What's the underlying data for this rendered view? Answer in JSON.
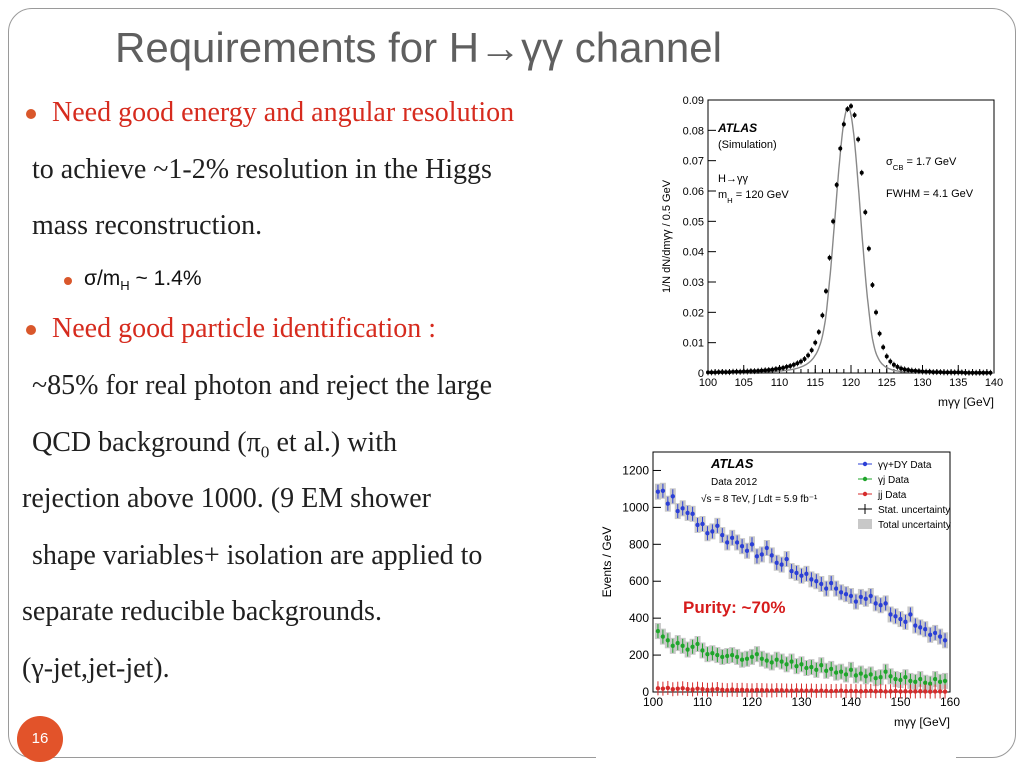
{
  "slide": {
    "title": "Requirements  for H→γγ channel",
    "page_number": "16"
  },
  "bullets": {
    "b1_line1": "Need good energy and angular resolution",
    "b1_line2": "to achieve ~1-2% resolution in the Higgs",
    "b1_line3": "mass reconstruction.",
    "sub1_a": "σ/m",
    "sub1_sub": "H",
    "sub1_b": " ~ 1.4%",
    "b2_line1": "Need good particle identification :",
    "b2_line2": "~85% for real photon and  reject the large",
    "b2_line3_a": "QCD background (π",
    "b2_line3_sub": "0",
    "b2_line3_b": " et al.) with",
    "b2_line4": "rejection above 1000. (9 EM shower",
    "b2_line5": "shape variables+  isolation are applied to",
    "b2_line6": "separate reducible backgrounds.",
    "b2_line7": "(γ-jet,jet-jet)."
  },
  "chart_data": [
    {
      "type": "scatter",
      "xlabel": "mγγ [GeV]",
      "ylabel": "1/N dN/dmγγ / 0.5 GeV",
      "xlim": [
        100,
        140
      ],
      "ylim": [
        0,
        0.09
      ],
      "x_ticks": [
        "100",
        "105",
        "110",
        "115",
        "120",
        "125",
        "130",
        "135",
        "140"
      ],
      "y_ticks": [
        "0",
        "0.01",
        "0.02",
        "0.03",
        "0.04",
        "0.05",
        "0.06",
        "0.07",
        "0.08",
        "0.09"
      ],
      "annotations": {
        "atlas": "ATLAS",
        "sim": "(Simulation)",
        "process": "H→γγ",
        "mass_a": "m",
        "mass_sub": "H",
        "mass_b": " = 120 GeV",
        "sigma_a": "σ",
        "sigma_sub": "CB",
        "sigma_b": " = 1.7 GeV",
        "fwhm": "FWHM = 4.1 GeV"
      },
      "peak": {
        "mean": 119.6,
        "sigma": 1.7,
        "height": 0.0875
      },
      "series": [
        {
          "values_x": [
            100,
            100.5,
            101,
            101.5,
            102,
            102.5,
            103,
            103.5,
            104,
            104.5,
            105,
            105.5,
            106,
            106.5,
            107,
            107.5,
            108,
            108.5,
            109,
            109.5,
            110,
            110.5,
            111,
            111.5,
            112,
            112.5,
            113,
            113.5,
            114,
            114.5,
            115,
            115.5,
            116,
            116.5,
            117,
            117.5,
            118,
            118.5,
            119,
            119.5,
            120,
            120.5,
            121,
            121.5,
            122,
            122.5,
            123,
            123.5,
            124,
            124.5,
            125,
            125.5,
            126,
            126.5,
            127,
            127.5,
            128,
            128.5,
            129,
            129.5,
            130,
            130.5,
            131,
            131.5,
            132,
            132.5,
            133,
            133.5,
            134,
            134.5,
            135,
            135.5,
            136,
            136.5,
            137,
            137.5,
            138,
            138.5,
            139,
            139.5
          ],
          "values_y": [
            0.0002,
            0.0002,
            0.0002,
            0.0003,
            0.0003,
            0.0003,
            0.0003,
            0.0004,
            0.0004,
            0.0004,
            0.0005,
            0.0005,
            0.0006,
            0.0006,
            0.0007,
            0.0008,
            0.0009,
            0.001,
            0.0011,
            0.0013,
            0.0015,
            0.0017,
            0.002,
            0.0023,
            0.0027,
            0.0032,
            0.0038,
            0.0046,
            0.0058,
            0.0075,
            0.01,
            0.0135,
            0.019,
            0.027,
            0.038,
            0.05,
            0.062,
            0.074,
            0.082,
            0.087,
            0.088,
            0.085,
            0.077,
            0.066,
            0.053,
            0.041,
            0.029,
            0.02,
            0.013,
            0.0085,
            0.0055,
            0.0038,
            0.0027,
            0.002,
            0.0015,
            0.0012,
            0.001,
            0.0008,
            0.0007,
            0.0006,
            0.0005,
            0.0004,
            0.0004,
            0.0003,
            0.0003,
            0.0003,
            0.0002,
            0.0002,
            0.0002,
            0.0002,
            0.0002,
            0.0002,
            0.0001,
            0.0001,
            0.0001,
            0.0001,
            0.0001,
            0.0001,
            0.0001,
            0.0001
          ]
        }
      ]
    },
    {
      "type": "scatter",
      "xlabel": "mγγ [GeV]",
      "ylabel": "Events / GeV",
      "xlim": [
        100,
        160
      ],
      "ylim": [
        0,
        1300
      ],
      "x_ticks": [
        "100",
        "110",
        "120",
        "130",
        "140",
        "150",
        "160"
      ],
      "y_ticks": [
        "0",
        "200",
        "400",
        "600",
        "800",
        "1000",
        "1200"
      ],
      "annotations": {
        "atlas": "ATLAS",
        "data": "Data 2012",
        "lumi": "√s = 8 TeV, ∫ Ldt =  5.9 fb⁻¹",
        "purity": "Purity: ~70%"
      },
      "legend": [
        "γγ+DY Data",
        "γj Data",
        "jj Data",
        "Stat. uncertainty",
        "Total uncertainty"
      ],
      "colors": {
        "gg": "#2b3fd6",
        "gj": "#1fa52b",
        "jj": "#d62b2b",
        "band": "#c8c8c8"
      },
      "x": [
        101,
        102,
        103,
        104,
        105,
        106,
        107,
        108,
        109,
        110,
        111,
        112,
        113,
        114,
        115,
        116,
        117,
        118,
        119,
        120,
        121,
        122,
        123,
        124,
        125,
        126,
        127,
        128,
        129,
        130,
        131,
        132,
        133,
        134,
        135,
        136,
        137,
        138,
        139,
        140,
        141,
        142,
        143,
        144,
        145,
        146,
        147,
        148,
        149,
        150,
        151,
        152,
        153,
        154,
        155,
        156,
        157,
        158,
        159
      ],
      "series": [
        {
          "name": "γγ+DY Data",
          "values": [
            1085,
            1090,
            1020,
            1060,
            980,
            995,
            970,
            965,
            905,
            910,
            860,
            870,
            900,
            850,
            810,
            835,
            810,
            790,
            765,
            800,
            735,
            745,
            780,
            740,
            700,
            690,
            720,
            655,
            645,
            630,
            640,
            610,
            600,
            585,
            560,
            590,
            560,
            540,
            530,
            520,
            490,
            515,
            505,
            520,
            480,
            470,
            480,
            420,
            410,
            395,
            380,
            420,
            360,
            350,
            340,
            310,
            320,
            300,
            280
          ]
        },
        {
          "name": "γj Data",
          "values": [
            330,
            300,
            280,
            250,
            265,
            250,
            230,
            245,
            260,
            225,
            205,
            210,
            200,
            190,
            195,
            200,
            190,
            175,
            180,
            190,
            205,
            180,
            170,
            160,
            175,
            165,
            150,
            165,
            140,
            150,
            130,
            135,
            120,
            145,
            115,
            125,
            105,
            110,
            95,
            120,
            90,
            100,
            85,
            95,
            75,
            80,
            110,
            85,
            70,
            65,
            80,
            60,
            55,
            70,
            50,
            45,
            70,
            55,
            60
          ]
        },
        {
          "name": "jj Data",
          "values": [
            20,
            18,
            22,
            15,
            18,
            20,
            16,
            14,
            18,
            15,
            12,
            14,
            16,
            12,
            10,
            13,
            11,
            12,
            10,
            9,
            11,
            10,
            9,
            8,
            10,
            9,
            8,
            7,
            9,
            8,
            7,
            8,
            6,
            7,
            6,
            5,
            6,
            7,
            5,
            6,
            5,
            4,
            5,
            6,
            4,
            5,
            3,
            4,
            5,
            3,
            4,
            3,
            3,
            4,
            3,
            2,
            3,
            3,
            2
          ]
        }
      ]
    }
  ]
}
